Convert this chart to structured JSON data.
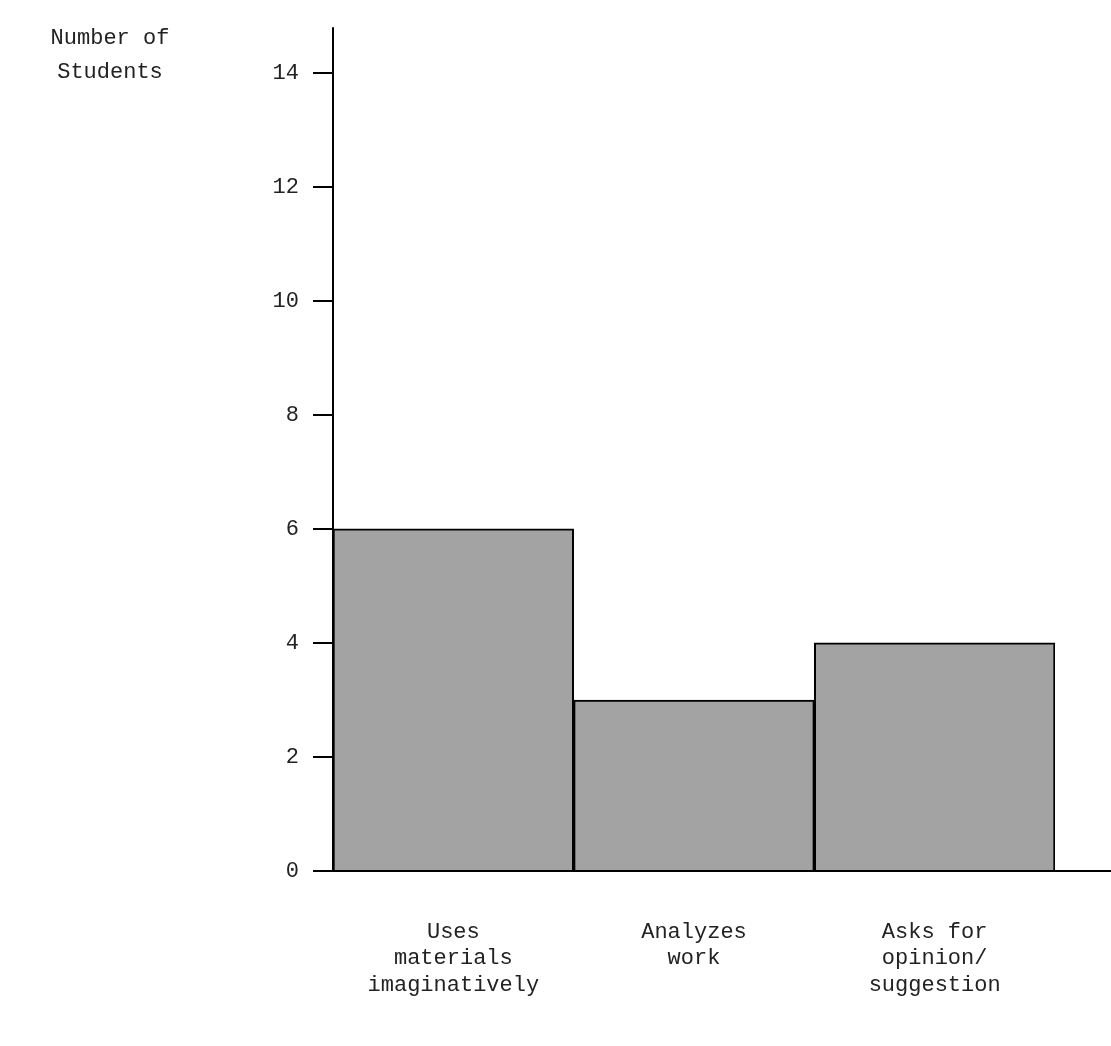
{
  "chart_data": {
    "type": "bar",
    "ylabel": "Number of Students",
    "categories": [
      "Uses materials imaginatively",
      "Analyzes work",
      "Asks for opinion/ suggestion"
    ],
    "values": [
      6,
      3,
      4
    ],
    "color": "#a3a3a3",
    "ylim": [
      0,
      14.8
    ],
    "yticks": [
      0,
      2,
      4,
      6,
      8,
      10,
      12,
      14
    ],
    "grid": false,
    "legend": false
  }
}
